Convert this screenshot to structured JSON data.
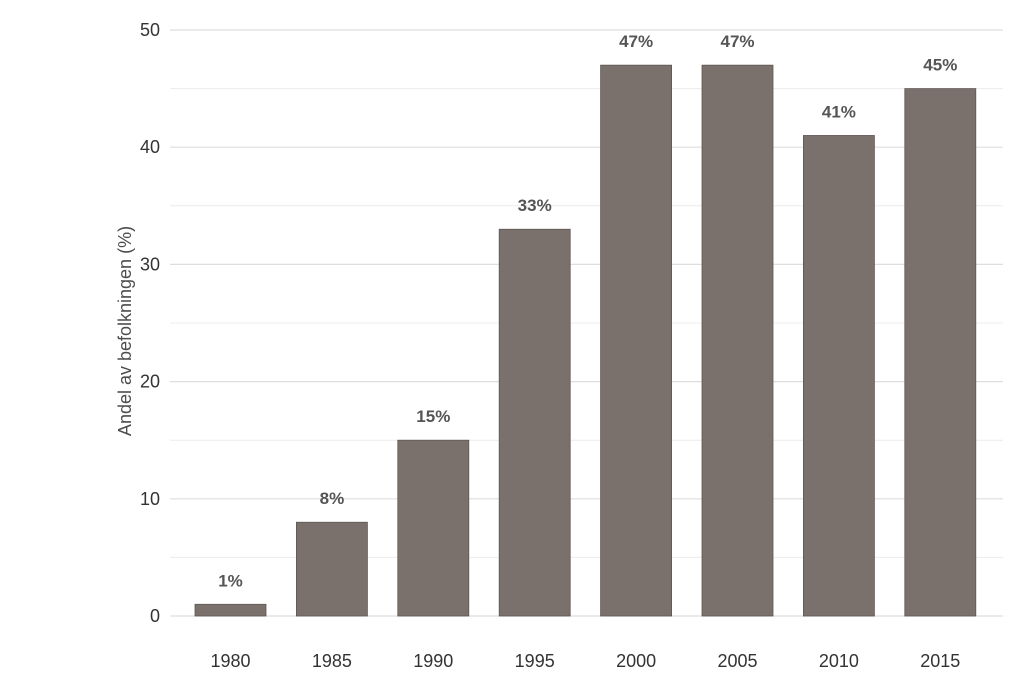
{
  "chart_data": {
    "type": "bar",
    "categories": [
      "1980",
      "1985",
      "1990",
      "1995",
      "2000",
      "2005",
      "2010",
      "2015"
    ],
    "values": [
      1,
      8,
      15,
      33,
      47,
      47,
      41,
      45
    ],
    "data_labels": [
      "1%",
      "8%",
      "15%",
      "33%",
      "47%",
      "47%",
      "41%",
      "45%"
    ],
    "ylabel": "Andel av befolkningen (%)",
    "xlabel": "",
    "ylim": [
      0,
      50
    ],
    "yticks": [
      "0",
      "10",
      "20",
      "30",
      "40",
      "50"
    ],
    "grid": true,
    "legend": "none",
    "bar_color": "#7a706c"
  }
}
